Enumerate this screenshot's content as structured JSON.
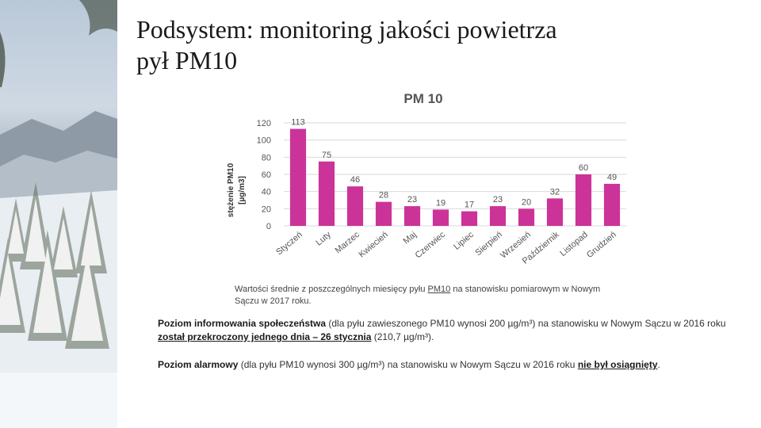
{
  "title": {
    "line1": "Podsystem: monitoring jakości powietrza",
    "line2": "pył PM10"
  },
  "chart_data": {
    "type": "bar",
    "title": "PM 10",
    "ylabel_line1": "stężenie PM10",
    "ylabel_line2": "[µg/m3]",
    "xlabel": "",
    "categories": [
      "Styczeń",
      "Luty",
      "Marzec",
      "Kwiecień",
      "Maj",
      "Czerwiec",
      "Lipiec",
      "Sierpień",
      "Wrzesień",
      "Październik",
      "Listopad",
      "Grudzień"
    ],
    "values": [
      113,
      75,
      46,
      28,
      23,
      19,
      17,
      23,
      20,
      32,
      60,
      49
    ],
    "ylim": [
      0,
      120
    ],
    "yticks": [
      0,
      20,
      40,
      60,
      80,
      100,
      120
    ],
    "grid": true,
    "legend": "none",
    "bar_color": "#cc3399"
  },
  "caption": {
    "pre": "Wartości średnie z poszczególnych miesięcy pyłu ",
    "link": "PM10",
    "post": " na stanowisku pomiarowym w Nowym Sączu w 2017 roku."
  },
  "para1": {
    "bold": "Poziom informowania społeczeństwa",
    "t1": " (dla pyłu zawieszonego PM10 wynosi 200 µg/m³) na stanowisku w Nowym Sączu w 2016 roku ",
    "underline": "został przekroczony jednego dnia – 26 stycznia",
    "t2": " (210,7 µg/m³)."
  },
  "para2": {
    "bold": "Poziom alarmowy",
    "t1": " (dla pyłu PM10 wynosi 300 µg/m³) na stanowisku w Nowym Sączu w 2016 roku ",
    "underline": "nie był osiągnięty",
    "t2": "."
  }
}
